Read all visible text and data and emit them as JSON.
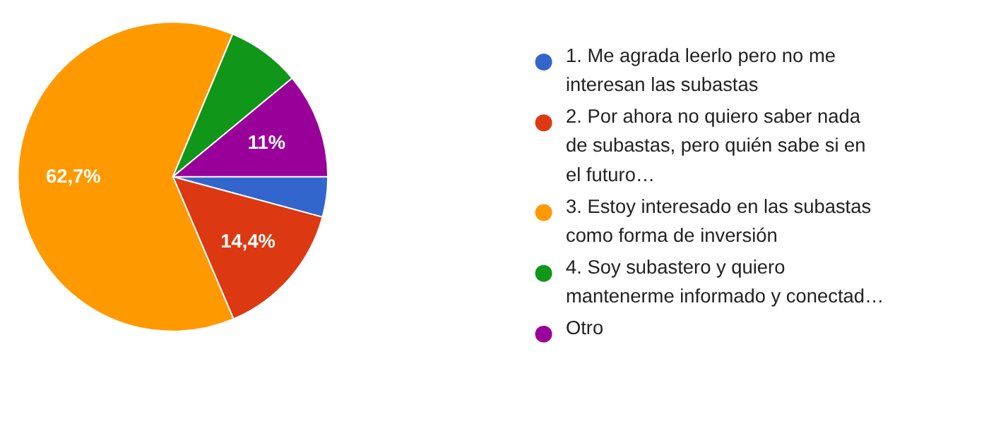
{
  "chart_data": {
    "type": "pie",
    "categories": [
      "1. Me agrada leerlo pero no me interesan las subastas",
      "2. Por ahora no quiero saber nada de subastas, pero quién sabe si en el futuro…",
      "3. Estoy interesado en las subastas como forma de inversión",
      "4. Soy subastero y quiero mantenerme informado y conectad…",
      "Otro"
    ],
    "values": [
      4.2,
      14.4,
      62.7,
      7.7,
      11
    ],
    "colors": [
      "#3366cc",
      "#dc3912",
      "#ff9900",
      "#109618",
      "#990099"
    ],
    "value_labels": [
      null,
      "14,4%",
      "62,7%",
      null,
      "11%"
    ],
    "legend": "right"
  }
}
